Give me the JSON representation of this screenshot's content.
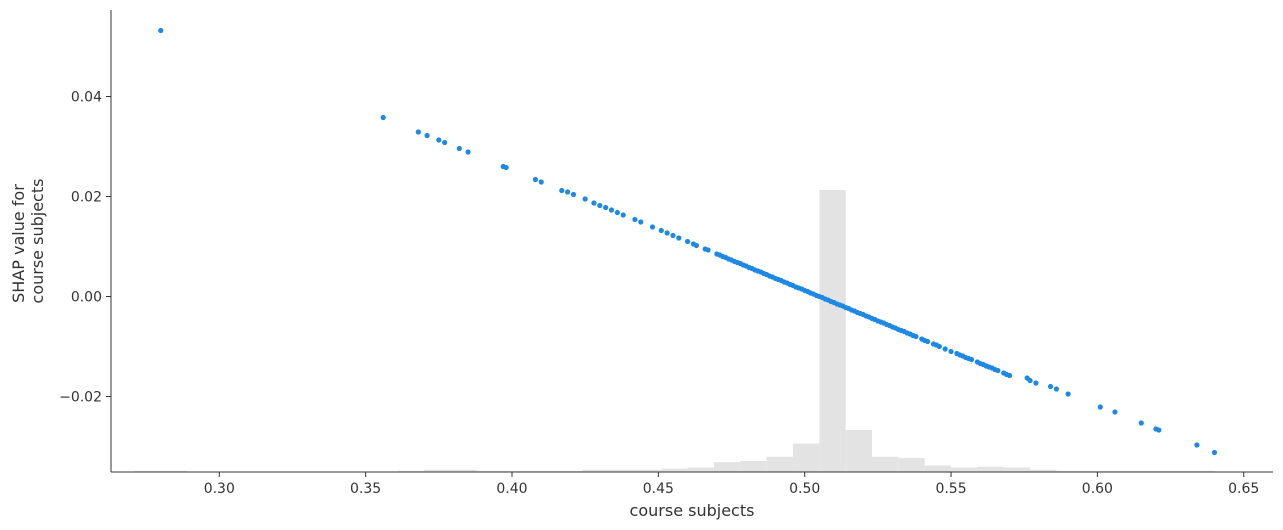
{
  "chart_data": {
    "type": "scatter",
    "title": "",
    "xlabel": "course subjects",
    "ylabel": [
      "SHAP value for",
      "course subjects"
    ],
    "xlim": [
      0.263,
      0.66
    ],
    "ylim": [
      -0.0351,
      0.0573
    ],
    "x_ticks": [
      0.3,
      0.35,
      0.4,
      0.45,
      0.5,
      0.55,
      0.6,
      0.65
    ],
    "x_tick_labels": [
      "0.30",
      "0.35",
      "0.40",
      "0.45",
      "0.50",
      "0.55",
      "0.60",
      "0.65"
    ],
    "y_ticks": [
      0.04,
      0.02,
      0.0,
      -0.02
    ],
    "y_tick_labels": [
      "0.04",
      "0.02",
      "0.00",
      "−0.02"
    ],
    "grid": false,
    "legend": "none",
    "point_color": "#1E88E5",
    "histogram_color": "#E3E3E3",
    "series": [
      {
        "x": [
          0.28,
          0.356,
          0.368,
          0.371,
          0.375,
          0.377,
          0.382,
          0.385,
          0.397,
          0.398,
          0.408,
          0.41,
          0.417,
          0.419,
          0.421,
          0.425,
          0.428,
          0.43,
          0.432,
          0.434,
          0.436,
          0.438,
          0.442,
          0.444,
          0.448,
          0.451,
          0.453,
          0.455,
          0.457,
          0.46,
          0.462,
          0.463,
          0.466,
          0.467,
          0.47,
          0.471,
          0.472,
          0.473,
          0.474,
          0.475,
          0.476,
          0.477,
          0.478,
          0.479,
          0.48,
          0.481,
          0.482,
          0.483,
          0.484,
          0.485,
          0.486,
          0.487,
          0.488,
          0.489,
          0.49,
          0.491,
          0.492,
          0.493,
          0.494,
          0.495,
          0.496,
          0.497,
          0.498,
          0.499,
          0.5,
          0.501,
          0.502,
          0.503,
          0.504,
          0.505,
          0.506,
          0.507,
          0.508,
          0.509,
          0.51,
          0.511,
          0.512,
          0.513,
          0.514,
          0.515,
          0.516,
          0.517,
          0.518,
          0.519,
          0.52,
          0.521,
          0.522,
          0.523,
          0.524,
          0.525,
          0.526,
          0.527,
          0.528,
          0.529,
          0.53,
          0.531,
          0.532,
          0.533,
          0.534,
          0.535,
          0.536,
          0.537,
          0.538,
          0.54,
          0.541,
          0.542,
          0.544,
          0.545,
          0.546,
          0.548,
          0.55,
          0.552,
          0.553,
          0.554,
          0.555,
          0.556,
          0.557,
          0.559,
          0.56,
          0.561,
          0.562,
          0.563,
          0.564,
          0.565,
          0.566,
          0.568,
          0.569,
          0.57,
          0.576,
          0.577,
          0.579,
          0.584,
          0.586,
          0.59,
          0.601,
          0.606,
          0.615,
          0.62,
          0.621,
          0.634,
          0.64
        ],
        "y": [
          0.0532,
          0.0358,
          0.0329,
          0.0322,
          0.0313,
          0.0308,
          0.0296,
          0.0289,
          0.026,
          0.0258,
          0.0234,
          0.0229,
          0.0212,
          0.0209,
          0.0204,
          0.0195,
          0.0187,
          0.0182,
          0.0178,
          0.0173,
          0.0168,
          0.0163,
          0.0154,
          0.0149,
          0.0139,
          0.0132,
          0.0127,
          0.0122,
          0.0117,
          0.011,
          0.0105,
          0.0102,
          0.0095,
          0.0093,
          0.0085,
          0.0083,
          0.008,
          0.0078,
          0.0075,
          0.0073,
          0.007,
          0.0068,
          0.0066,
          0.0063,
          0.0061,
          0.0058,
          0.0056,
          0.0053,
          0.0051,
          0.0049,
          0.0046,
          0.0044,
          0.0041,
          0.0039,
          0.0036,
          0.0034,
          0.0032,
          0.0029,
          0.0027,
          0.0024,
          0.0022,
          0.0019,
          0.0017,
          0.0015,
          0.0012,
          0.001,
          0.0007,
          0.0005,
          0.0002,
          0.0,
          -0.0002,
          -0.0005,
          -0.0007,
          -0.001,
          -0.0012,
          -0.0015,
          -0.0017,
          -0.0019,
          -0.0022,
          -0.0024,
          -0.0027,
          -0.0029,
          -0.0032,
          -0.0034,
          -0.0036,
          -0.0039,
          -0.0041,
          -0.0044,
          -0.0046,
          -0.0049,
          -0.0051,
          -0.0053,
          -0.0056,
          -0.0058,
          -0.0061,
          -0.0063,
          -0.0066,
          -0.0068,
          -0.007,
          -0.0073,
          -0.0075,
          -0.0078,
          -0.008,
          -0.0085,
          -0.0088,
          -0.009,
          -0.0095,
          -0.0097,
          -0.01,
          -0.0105,
          -0.011,
          -0.0114,
          -0.0117,
          -0.0119,
          -0.0122,
          -0.0124,
          -0.0126,
          -0.0131,
          -0.0134,
          -0.0136,
          -0.0139,
          -0.0141,
          -0.0143,
          -0.0146,
          -0.0148,
          -0.0153,
          -0.0156,
          -0.0158,
          -0.0163,
          -0.0168,
          -0.0173,
          -0.018,
          -0.0185,
          -0.0195,
          -0.0221,
          -0.0231,
          -0.0253,
          -0.0265,
          -0.0267,
          -0.0297,
          -0.0312
        ]
      }
    ],
    "histogram": {
      "bin_edges": [
        0.262,
        0.271,
        0.28,
        0.289,
        0.298,
        0.307,
        0.316,
        0.325,
        0.334,
        0.343,
        0.352,
        0.361,
        0.37,
        0.379,
        0.388,
        0.397,
        0.406,
        0.415,
        0.424,
        0.433,
        0.442,
        0.451,
        0.46,
        0.469,
        0.478,
        0.487,
        0.496,
        0.505,
        0.514,
        0.523,
        0.532,
        0.541,
        0.55,
        0.559,
        0.568,
        0.577,
        0.586,
        0.595,
        0.604,
        0.613,
        0.622,
        0.631,
        0.64
      ],
      "relative_heights": [
        0.0,
        0.004,
        0.004,
        0.0,
        0.0,
        0.0,
        0.0,
        0.0,
        0.0,
        0.0,
        0.0,
        0.004,
        0.008,
        0.008,
        0.004,
        0.004,
        0.004,
        0.004,
        0.008,
        0.008,
        0.008,
        0.012,
        0.016,
        0.035,
        0.039,
        0.054,
        0.101,
        1.0,
        0.149,
        0.054,
        0.05,
        0.023,
        0.016,
        0.019,
        0.016,
        0.008,
        0.004,
        0.004,
        0.004,
        0.004,
        0.004,
        0.004
      ]
    }
  }
}
